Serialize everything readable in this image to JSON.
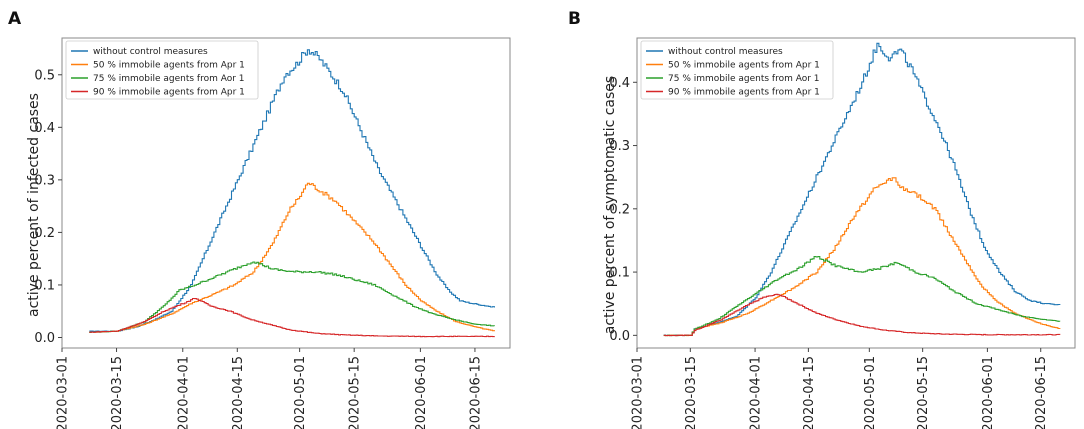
{
  "chart_data": [
    {
      "panel": "A",
      "type": "line",
      "xlabel": "",
      "ylabel": "active percent of infected cases",
      "ylim": [
        -0.02,
        0.57
      ],
      "x_start": "2020-03-01",
      "x_end": "2020-06-24",
      "x_ticks": [
        "2020-03-01",
        "2020-03-15",
        "2020-04-01",
        "2020-04-15",
        "2020-05-01",
        "2020-05-15",
        "2020-06-01",
        "2020-06-15"
      ],
      "y_ticks": [
        "0.0",
        "0.1",
        "0.2",
        "0.3",
        "0.4",
        "0.5"
      ],
      "legend_position": "top-left",
      "series": [
        {
          "name": "without control measures",
          "color": "#1f77b4",
          "points": [
            [
              "2020-03-08",
              0.012
            ],
            [
              "2020-03-15",
              0.012
            ],
            [
              "2020-03-20",
              0.02
            ],
            [
              "2020-03-25",
              0.035
            ],
            [
              "2020-03-29",
              0.05
            ],
            [
              "2020-04-01",
              0.08
            ],
            [
              "2020-04-03",
              0.1
            ],
            [
              "2020-04-06",
              0.15
            ],
            [
              "2020-04-09",
              0.2
            ],
            [
              "2020-04-12",
              0.25
            ],
            [
              "2020-04-15",
              0.3
            ],
            [
              "2020-04-18",
              0.35
            ],
            [
              "2020-04-21",
              0.4
            ],
            [
              "2020-04-24",
              0.45
            ],
            [
              "2020-04-27",
              0.5
            ],
            [
              "2020-04-30",
              0.52
            ],
            [
              "2020-05-03",
              0.55
            ],
            [
              "2020-05-06",
              0.53
            ],
            [
              "2020-05-09",
              0.5
            ],
            [
              "2020-05-12",
              0.47
            ],
            [
              "2020-05-15",
              0.42
            ],
            [
              "2020-05-18",
              0.37
            ],
            [
              "2020-05-21",
              0.32
            ],
            [
              "2020-05-24",
              0.28
            ],
            [
              "2020-05-27",
              0.24
            ],
            [
              "2020-05-30",
              0.2
            ],
            [
              "2020-06-02",
              0.16
            ],
            [
              "2020-06-05",
              0.12
            ],
            [
              "2020-06-08",
              0.09
            ],
            [
              "2020-06-11",
              0.07
            ],
            [
              "2020-06-14",
              0.065
            ],
            [
              "2020-06-18",
              0.06
            ],
            [
              "2020-06-20",
              0.057
            ]
          ]
        },
        {
          "name": "50 % immobile agents from Apr 1",
          "color": "#ff7f0e",
          "points": [
            [
              "2020-03-08",
              0.01
            ],
            [
              "2020-03-15",
              0.012
            ],
            [
              "2020-03-22",
              0.025
            ],
            [
              "2020-03-29",
              0.045
            ],
            [
              "2020-04-03",
              0.065
            ],
            [
              "2020-04-08",
              0.08
            ],
            [
              "2020-04-14",
              0.1
            ],
            [
              "2020-04-19",
              0.125
            ],
            [
              "2020-04-24",
              0.18
            ],
            [
              "2020-04-28",
              0.24
            ],
            [
              "2020-05-01",
              0.27
            ],
            [
              "2020-05-03",
              0.295
            ],
            [
              "2020-05-06",
              0.28
            ],
            [
              "2020-05-10",
              0.26
            ],
            [
              "2020-05-15",
              0.22
            ],
            [
              "2020-05-20",
              0.18
            ],
            [
              "2020-05-24",
              0.14
            ],
            [
              "2020-05-28",
              0.1
            ],
            [
              "2020-06-01",
              0.07
            ],
            [
              "2020-06-05",
              0.05
            ],
            [
              "2020-06-10",
              0.03
            ],
            [
              "2020-06-15",
              0.02
            ],
            [
              "2020-06-20",
              0.012
            ]
          ]
        },
        {
          "name": "75 % immobile agents from Aor 1",
          "color": "#2ca02c",
          "points": [
            [
              "2020-03-08",
              0.01
            ],
            [
              "2020-03-15",
              0.012
            ],
            [
              "2020-03-22",
              0.03
            ],
            [
              "2020-03-27",
              0.06
            ],
            [
              "2020-03-31",
              0.09
            ],
            [
              "2020-04-04",
              0.1
            ],
            [
              "2020-04-09",
              0.115
            ],
            [
              "2020-04-14",
              0.13
            ],
            [
              "2020-04-19",
              0.145
            ],
            [
              "2020-04-24",
              0.13
            ],
            [
              "2020-04-29",
              0.125
            ],
            [
              "2020-05-05",
              0.125
            ],
            [
              "2020-05-10",
              0.12
            ],
            [
              "2020-05-15",
              0.11
            ],
            [
              "2020-05-20",
              0.1
            ],
            [
              "2020-05-25",
              0.08
            ],
            [
              "2020-05-30",
              0.06
            ],
            [
              "2020-06-04",
              0.045
            ],
            [
              "2020-06-09",
              0.035
            ],
            [
              "2020-06-15",
              0.025
            ],
            [
              "2020-06-20",
              0.022
            ]
          ]
        },
        {
          "name": "90 % immobile agents from Apr 1",
          "color": "#d62728",
          "points": [
            [
              "2020-03-08",
              0.01
            ],
            [
              "2020-03-15",
              0.012
            ],
            [
              "2020-03-22",
              0.03
            ],
            [
              "2020-03-27",
              0.05
            ],
            [
              "2020-04-01",
              0.065
            ],
            [
              "2020-04-04",
              0.075
            ],
            [
              "2020-04-08",
              0.06
            ],
            [
              "2020-04-13",
              0.05
            ],
            [
              "2020-04-18",
              0.035
            ],
            [
              "2020-04-23",
              0.025
            ],
            [
              "2020-04-28",
              0.015
            ],
            [
              "2020-05-05",
              0.008
            ],
            [
              "2020-05-12",
              0.005
            ],
            [
              "2020-05-20",
              0.003
            ],
            [
              "2020-06-01",
              0.002
            ],
            [
              "2020-06-20",
              0.002
            ]
          ]
        }
      ]
    },
    {
      "panel": "B",
      "type": "line",
      "xlabel": "",
      "ylabel": "active percent of symptomatic cases",
      "ylim": [
        -0.02,
        0.47
      ],
      "x_start": "2020-03-01",
      "x_end": "2020-06-24",
      "x_ticks": [
        "2020-03-01",
        "2020-03-15",
        "2020-04-01",
        "2020-04-15",
        "2020-05-01",
        "2020-05-15",
        "2020-06-01",
        "2020-06-15"
      ],
      "y_ticks": [
        "0.0",
        "0.1",
        "0.2",
        "0.3",
        "0.4"
      ],
      "legend_position": "top-left",
      "series": [
        {
          "name": "without control measures",
          "color": "#1f77b4",
          "points": [
            [
              "2020-03-08",
              0.0
            ],
            [
              "2020-03-15",
              0.0
            ],
            [
              "2020-03-16",
              0.01
            ],
            [
              "2020-03-22",
              0.02
            ],
            [
              "2020-03-27",
              0.03
            ],
            [
              "2020-04-01",
              0.06
            ],
            [
              "2020-04-05",
              0.1
            ],
            [
              "2020-04-09",
              0.15
            ],
            [
              "2020-04-13",
              0.2
            ],
            [
              "2020-04-17",
              0.25
            ],
            [
              "2020-04-21",
              0.3
            ],
            [
              "2020-04-25",
              0.35
            ],
            [
              "2020-04-29",
              0.4
            ],
            [
              "2020-05-01",
              0.43
            ],
            [
              "2020-05-03",
              0.46
            ],
            [
              "2020-05-06",
              0.44
            ],
            [
              "2020-05-09",
              0.45
            ],
            [
              "2020-05-12",
              0.42
            ],
            [
              "2020-05-15",
              0.38
            ],
            [
              "2020-05-19",
              0.33
            ],
            [
              "2020-05-23",
              0.27
            ],
            [
              "2020-05-27",
              0.2
            ],
            [
              "2020-05-31",
              0.14
            ],
            [
              "2020-06-04",
              0.1
            ],
            [
              "2020-06-08",
              0.07
            ],
            [
              "2020-06-12",
              0.055
            ],
            [
              "2020-06-16",
              0.05
            ],
            [
              "2020-06-20",
              0.048
            ]
          ]
        },
        {
          "name": "50 % immobile agents from Apr 1",
          "color": "#ff7f0e",
          "points": [
            [
              "2020-03-08",
              0.0
            ],
            [
              "2020-03-15",
              0.0
            ],
            [
              "2020-03-16",
              0.01
            ],
            [
              "2020-03-23",
              0.02
            ],
            [
              "2020-03-30",
              0.035
            ],
            [
              "2020-04-05",
              0.055
            ],
            [
              "2020-04-11",
              0.075
            ],
            [
              "2020-04-17",
              0.1
            ],
            [
              "2020-04-22",
              0.14
            ],
            [
              "2020-04-27",
              0.19
            ],
            [
              "2020-05-02",
              0.23
            ],
            [
              "2020-05-07",
              0.25
            ],
            [
              "2020-05-10",
              0.23
            ],
            [
              "2020-05-14",
              0.22
            ],
            [
              "2020-05-18",
              0.2
            ],
            [
              "2020-05-22",
              0.16
            ],
            [
              "2020-05-26",
              0.12
            ],
            [
              "2020-05-30",
              0.08
            ],
            [
              "2020-06-03",
              0.055
            ],
            [
              "2020-06-08",
              0.035
            ],
            [
              "2020-06-14",
              0.02
            ],
            [
              "2020-06-20",
              0.01
            ]
          ]
        },
        {
          "name": "75 % immobile agents from Aor 1",
          "color": "#2ca02c",
          "points": [
            [
              "2020-03-08",
              0.0
            ],
            [
              "2020-03-15",
              0.0
            ],
            [
              "2020-03-16",
              0.01
            ],
            [
              "2020-03-22",
              0.025
            ],
            [
              "2020-03-28",
              0.05
            ],
            [
              "2020-04-02",
              0.07
            ],
            [
              "2020-04-07",
              0.09
            ],
            [
              "2020-04-12",
              0.105
            ],
            [
              "2020-04-17",
              0.125
            ],
            [
              "2020-04-22",
              0.11
            ],
            [
              "2020-04-28",
              0.1
            ],
            [
              "2020-05-03",
              0.105
            ],
            [
              "2020-05-08",
              0.115
            ],
            [
              "2020-05-13",
              0.1
            ],
            [
              "2020-05-18",
              0.09
            ],
            [
              "2020-05-23",
              0.07
            ],
            [
              "2020-05-29",
              0.05
            ],
            [
              "2020-06-04",
              0.04
            ],
            [
              "2020-06-10",
              0.03
            ],
            [
              "2020-06-16",
              0.025
            ],
            [
              "2020-06-20",
              0.022
            ]
          ]
        },
        {
          "name": "90 % immobile agents from Apr 1",
          "color": "#d62728",
          "points": [
            [
              "2020-03-08",
              0.0
            ],
            [
              "2020-03-15",
              0.0
            ],
            [
              "2020-03-16",
              0.008
            ],
            [
              "2020-03-23",
              0.025
            ],
            [
              "2020-03-29",
              0.045
            ],
            [
              "2020-04-03",
              0.06
            ],
            [
              "2020-04-07",
              0.065
            ],
            [
              "2020-04-12",
              0.05
            ],
            [
              "2020-04-17",
              0.035
            ],
            [
              "2020-04-22",
              0.025
            ],
            [
              "2020-04-28",
              0.015
            ],
            [
              "2020-05-05",
              0.008
            ],
            [
              "2020-05-12",
              0.004
            ],
            [
              "2020-05-20",
              0.002
            ],
            [
              "2020-06-01",
              0.001
            ],
            [
              "2020-06-20",
              0.001
            ]
          ]
        }
      ]
    }
  ]
}
